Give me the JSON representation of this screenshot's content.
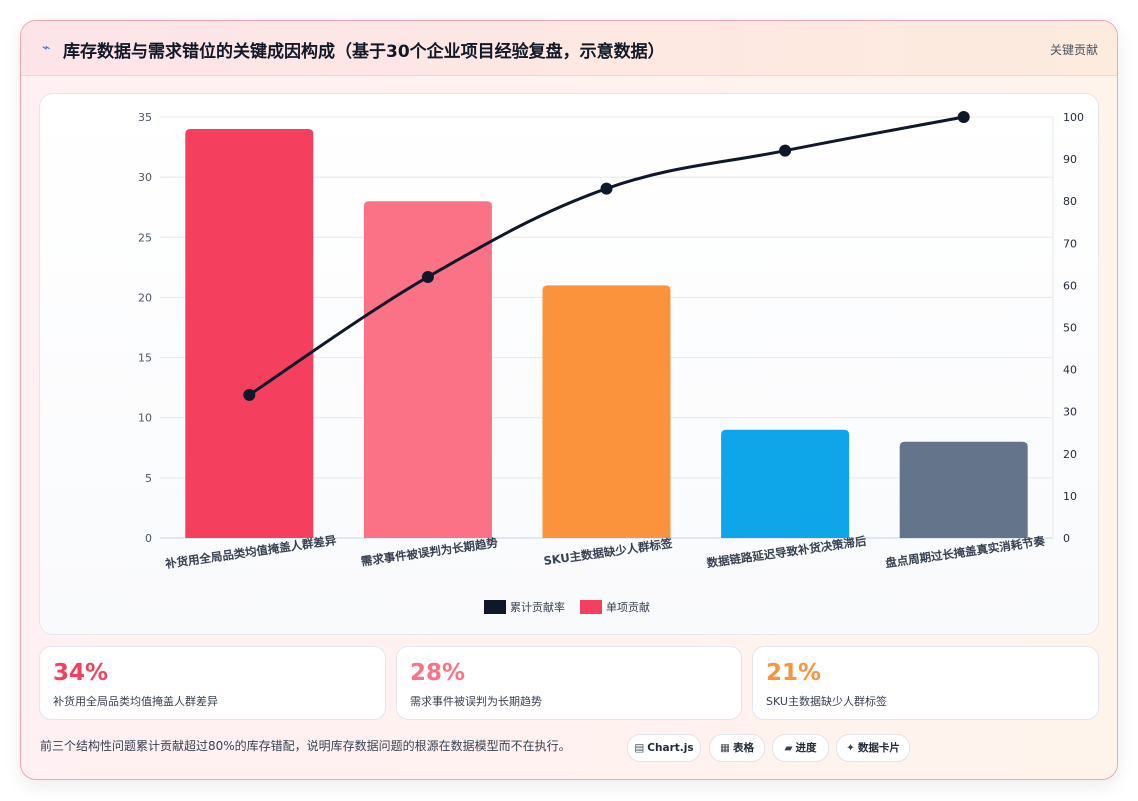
{
  "header": {
    "icon": "lightning-icon",
    "title": "库存数据与需求错位的关键成因构成（基于30个企业项目经验复盘，示意数据）",
    "tag": "关键贡献"
  },
  "chart_data": {
    "type": "bar",
    "categories": [
      "补货用全局品类均值掩盖人群差异",
      "需求事件被误判为长期趋势",
      "SKU主数据缺少人群标签",
      "数据链路延迟导致补货决策滞后",
      "盘点周期过长掩盖真实消耗节奏"
    ],
    "series": [
      {
        "name": "单项贡献",
        "type": "bar",
        "axis": "left",
        "values": [
          34,
          28,
          21,
          9,
          8
        ],
        "colors": [
          "#f43f5e",
          "#fb7185",
          "#fb923c",
          "#0ea5e9",
          "#64748b"
        ]
      },
      {
        "name": "累计贡献率",
        "type": "line",
        "axis": "right",
        "values": [
          34,
          62,
          83,
          92,
          100
        ],
        "color": "#0f172a"
      }
    ],
    "y_left": {
      "min": 0,
      "max": 35,
      "step": 5
    },
    "y_right": {
      "min": 0,
      "max": 100,
      "step": 10
    },
    "grid": true,
    "legend": "bottom-center"
  },
  "stats": [
    {
      "value": "34%",
      "label": "补货用全局品类均值掩盖人群差异",
      "color": "#f43f5e"
    },
    {
      "value": "28%",
      "label": "需求事件被误判为长期趋势",
      "color": "#fb7185"
    },
    {
      "value": "21%",
      "label": "SKU主数据缺少人群标签",
      "color": "#fb923c"
    }
  ],
  "footer": {
    "note": "前三个结构性问题累计贡献超过80%的库存错配，说明库存数据问题的根源在数据模型而不在执行。",
    "pills": [
      {
        "icon": "▤",
        "label": "Chart.js",
        "name": "chartjs-pill"
      },
      {
        "icon": "▦",
        "label": "表格",
        "name": "table-pill"
      },
      {
        "icon": "▰",
        "label": "进度",
        "name": "progress-pill"
      },
      {
        "icon": "✦",
        "label": "数据卡片",
        "name": "data-card-pill"
      }
    ]
  }
}
